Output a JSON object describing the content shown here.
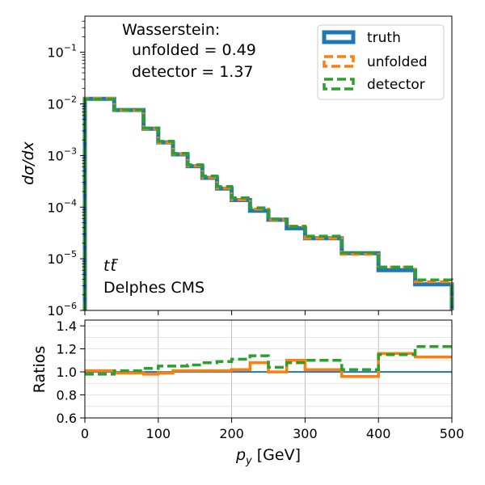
{
  "chart_data": [
    {
      "type": "line",
      "subtype": "step-histogram",
      "title": "",
      "ylabel": "dσ/dx",
      "yscale": "log",
      "ylim": [
        1e-06,
        0.5
      ],
      "xlim": [
        0,
        500
      ],
      "bin_edges": [
        0,
        40,
        80,
        100,
        120,
        140,
        160,
        180,
        200,
        225,
        250,
        275,
        300,
        350,
        400,
        450,
        500
      ],
      "series": [
        {
          "name": "truth",
          "color": "#1f77b4",
          "style": "solid",
          "values": [
            0.0125,
            0.0076,
            0.0033,
            0.0018,
            0.00105,
            0.00062,
            0.00037,
            0.00023,
            0.000137,
            8.5e-05,
            5.7e-05,
            3.9e-05,
            2.5e-05,
            1.28e-05,
            6e-06,
            3.2e-06
          ]
        },
        {
          "name": "unfolded",
          "color": "#ff7f0e",
          "style": "dashed",
          "values": [
            0.0127,
            0.0075,
            0.0033,
            0.00179,
            0.00106,
            0.00063,
            0.000375,
            0.000233,
            0.000139,
            9.2e-05,
            5.7e-05,
            4.3e-05,
            2.5e-05,
            1.22e-05,
            6.9e-06,
            3.6e-06
          ]
        },
        {
          "name": "detector",
          "color": "#2ca02c",
          "style": "dashed",
          "values": [
            0.0123,
            0.0077,
            0.0034,
            0.00189,
            0.0011,
            0.00066,
            0.0004,
            0.00025,
            0.000151,
            9.7e-05,
            5.9e-05,
            4.2e-05,
            2.75e-05,
            1.31e-05,
            6.9e-06,
            3.9e-06
          ]
        }
      ],
      "ytick_labels": [
        "10^-6",
        "10^-5",
        "10^-4",
        "10^-3",
        "10^-2",
        "10^-1"
      ],
      "legend": {
        "position": "top-right",
        "entries": [
          "truth",
          "unfolded",
          "detector"
        ]
      },
      "annotations": {
        "metric_title": "Wasserstein:",
        "unfolded_line": "unfolded = 0.49",
        "detector_line": "detector = 1.37",
        "process": "tt̄",
        "process_base": "t",
        "process_bar": "t",
        "simulation": "Delphes CMS"
      }
    },
    {
      "type": "line",
      "subtype": "step-ratio",
      "ylabel": "Ratios",
      "xlabel": "p_y [GeV]",
      "xlabel_main": "p",
      "xlabel_sub": "y",
      "xlabel_unit": "[GeV]",
      "ylim": [
        0.6,
        1.45
      ],
      "xlim": [
        0,
        500
      ],
      "grid": true,
      "bin_edges": [
        0,
        40,
        80,
        100,
        120,
        140,
        160,
        180,
        200,
        225,
        250,
        275,
        300,
        350,
        400,
        450,
        500
      ],
      "xticks": [
        0,
        100,
        200,
        300,
        400,
        500
      ],
      "yticks": [
        0.6,
        0.8,
        1.0,
        1.2,
        1.4
      ],
      "ytick_labels": [
        "0.6",
        "0.8",
        "1.0",
        "1.2",
        "1.4"
      ],
      "series": [
        {
          "name": "truth",
          "color": "#1f77b4",
          "style": "solid",
          "values": [
            1.0,
            1.0,
            1.0,
            1.0,
            1.0,
            1.0,
            1.0,
            1.0,
            1.0,
            1.0,
            1.0,
            1.0,
            1.0,
            1.0,
            1.0,
            1.0
          ]
        },
        {
          "name": "unfolded",
          "color": "#ff7f0e",
          "style": "solid",
          "values": [
            1.01,
            0.99,
            0.98,
            0.99,
            1.01,
            1.01,
            1.01,
            1.01,
            1.02,
            1.08,
            1.0,
            1.1,
            1.02,
            0.96,
            1.16,
            1.13
          ]
        },
        {
          "name": "detector",
          "color": "#2ca02c",
          "style": "dashed",
          "values": [
            0.98,
            1.01,
            1.03,
            1.05,
            1.05,
            1.06,
            1.08,
            1.09,
            1.11,
            1.14,
            1.04,
            1.08,
            1.1,
            1.02,
            1.15,
            1.22
          ]
        }
      ]
    }
  ]
}
